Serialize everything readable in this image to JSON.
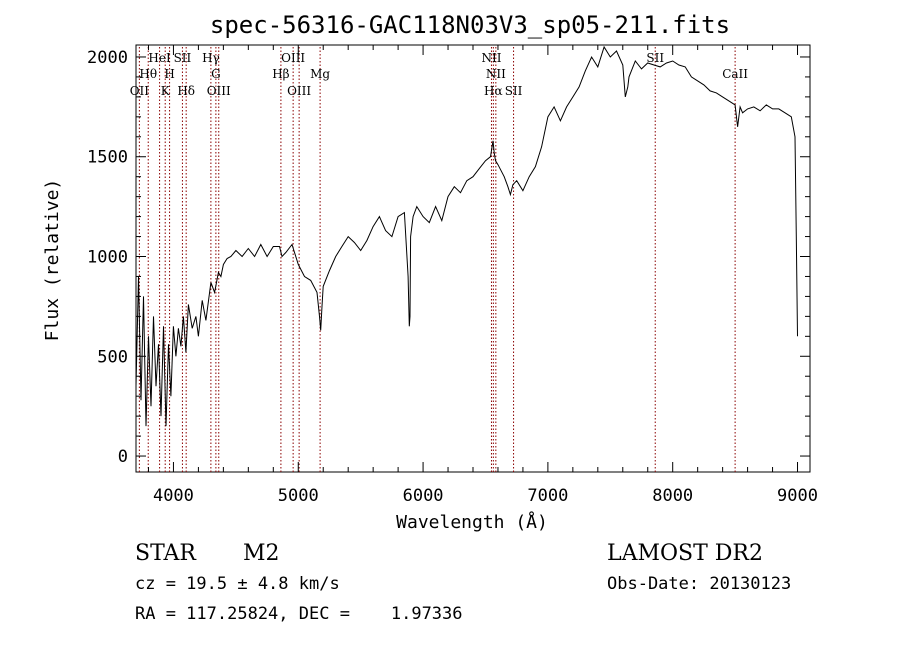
{
  "colors": {
    "spectrum": "#000000",
    "line_markers": "#8b0000",
    "axes": "#000000",
    "background": "#ffffff"
  },
  "chart_data": {
    "type": "line",
    "title": "spec-56316-GAC118N03V3_sp05-211.fits",
    "xlabel": "Wavelength (Å)",
    "ylabel": "Flux (relative)",
    "xlim": [
      3700,
      9100
    ],
    "ylim": [
      -80,
      2060
    ],
    "xticks": [
      4000,
      5000,
      6000,
      7000,
      8000,
      9000
    ],
    "yticks": [
      0,
      500,
      1000,
      1500,
      2000
    ],
    "grid": false,
    "series": [
      {
        "x": [
          3700,
          3720,
          3740,
          3760,
          3780,
          3800,
          3820,
          3840,
          3860,
          3880,
          3900,
          3920,
          3940,
          3960,
          3980,
          4000,
          4020,
          4040,
          4060,
          4080,
          4100,
          4120,
          4150,
          4180,
          4200,
          4230,
          4260,
          4300,
          4330,
          4360,
          4380,
          4400,
          4430,
          4460,
          4500,
          4550,
          4600,
          4650,
          4700,
          4750,
          4800,
          4850,
          4870,
          4900,
          4950,
          5000,
          5050,
          5100,
          5150,
          5170,
          5180,
          5190,
          5200,
          5250,
          5300,
          5350,
          5400,
          5450,
          5500,
          5550,
          5600,
          5650,
          5700,
          5750,
          5800,
          5850,
          5880,
          5890,
          5895,
          5900,
          5920,
          5950,
          6000,
          6050,
          6100,
          6150,
          6200,
          6250,
          6300,
          6350,
          6400,
          6450,
          6500,
          6540,
          6560,
          6570,
          6580,
          6600,
          6650,
          6680,
          6700,
          6720,
          6750,
          6800,
          6850,
          6900,
          6950,
          7000,
          7050,
          7100,
          7150,
          7200,
          7250,
          7300,
          7350,
          7400,
          7450,
          7500,
          7550,
          7600,
          7620,
          7640,
          7650,
          7700,
          7750,
          7800,
          7850,
          7900,
          7950,
          8000,
          8050,
          8100,
          8150,
          8200,
          8250,
          8300,
          8350,
          8400,
          8450,
          8500,
          8520,
          8540,
          8560,
          8600,
          8650,
          8700,
          8750,
          8800,
          8850,
          8900,
          8950,
          8980,
          8990,
          9000
        ],
        "y": [
          350,
          900,
          280,
          800,
          150,
          600,
          250,
          700,
          350,
          560,
          200,
          650,
          150,
          560,
          300,
          650,
          500,
          640,
          550,
          700,
          520,
          760,
          640,
          700,
          600,
          780,
          680,
          870,
          820,
          920,
          900,
          960,
          990,
          1000,
          1030,
          1000,
          1040,
          1000,
          1060,
          1000,
          1050,
          1050,
          1000,
          1020,
          1060,
          960,
          900,
          880,
          820,
          700,
          630,
          750,
          850,
          930,
          1000,
          1050,
          1100,
          1070,
          1030,
          1080,
          1150,
          1200,
          1130,
          1100,
          1200,
          1220,
          900,
          650,
          700,
          1100,
          1200,
          1250,
          1200,
          1170,
          1250,
          1180,
          1300,
          1350,
          1320,
          1380,
          1400,
          1440,
          1480,
          1500,
          1580,
          1520,
          1480,
          1460,
          1400,
          1350,
          1310,
          1360,
          1380,
          1330,
          1400,
          1450,
          1550,
          1700,
          1750,
          1680,
          1750,
          1800,
          1850,
          1930,
          2000,
          1950,
          2050,
          2000,
          2030,
          1960,
          1800,
          1850,
          1900,
          1980,
          1940,
          1970,
          1960,
          1950,
          1970,
          1980,
          1960,
          1950,
          1900,
          1880,
          1860,
          1830,
          1820,
          1800,
          1780,
          1760,
          1650,
          1750,
          1720,
          1740,
          1750,
          1730,
          1760,
          1740,
          1740,
          1720,
          1700,
          1600,
          1100,
          600
        ]
      }
    ],
    "lines": [
      {
        "name": "OII",
        "wl": 3727,
        "row": 3
      },
      {
        "name": "Hθ",
        "wl": 3798,
        "row": 2
      },
      {
        "name": "HeI",
        "wl": 3889,
        "row": 1
      },
      {
        "name": "K",
        "wl": 3934,
        "row": 3
      },
      {
        "name": "H",
        "wl": 3969,
        "row": 2
      },
      {
        "name": "SII",
        "wl": 4072,
        "row": 1
      },
      {
        "name": "Hδ",
        "wl": 4102,
        "row": 3
      },
      {
        "name": "Hγ",
        "wl": 4300,
        "row": 1
      },
      {
        "name": "G",
        "wl": 4340,
        "row": 2
      },
      {
        "name": "OIII",
        "wl": 4363,
        "row": 3
      },
      {
        "name": "Hβ",
        "wl": 4861,
        "row": 2
      },
      {
        "name": "OIII",
        "wl": 4959,
        "row": 1
      },
      {
        "name": "OIII",
        "wl": 5007,
        "row": 3
      },
      {
        "name": "Mg",
        "wl": 5175,
        "row": 2
      },
      {
        "name": "NII",
        "wl": 6548,
        "row": 1
      },
      {
        "name": "Hα",
        "wl": 6563,
        "row": 3
      },
      {
        "name": "NII",
        "wl": 6583,
        "row": 2
      },
      {
        "name": "SII",
        "wl": 6725,
        "row": 3
      },
      {
        "name": "SII",
        "wl": 7860,
        "row": 1
      },
      {
        "name": "CaII",
        "wl": 8500,
        "row": 2
      }
    ]
  },
  "info": {
    "object_class": "STAR",
    "subclass": "M2",
    "survey": "LAMOST DR2",
    "redshift": "cz = 19.5 ± 4.8 km/s",
    "obs_date": "Obs-Date: 20130123",
    "coords": "RA = 117.25824, DEC =    1.97336"
  }
}
